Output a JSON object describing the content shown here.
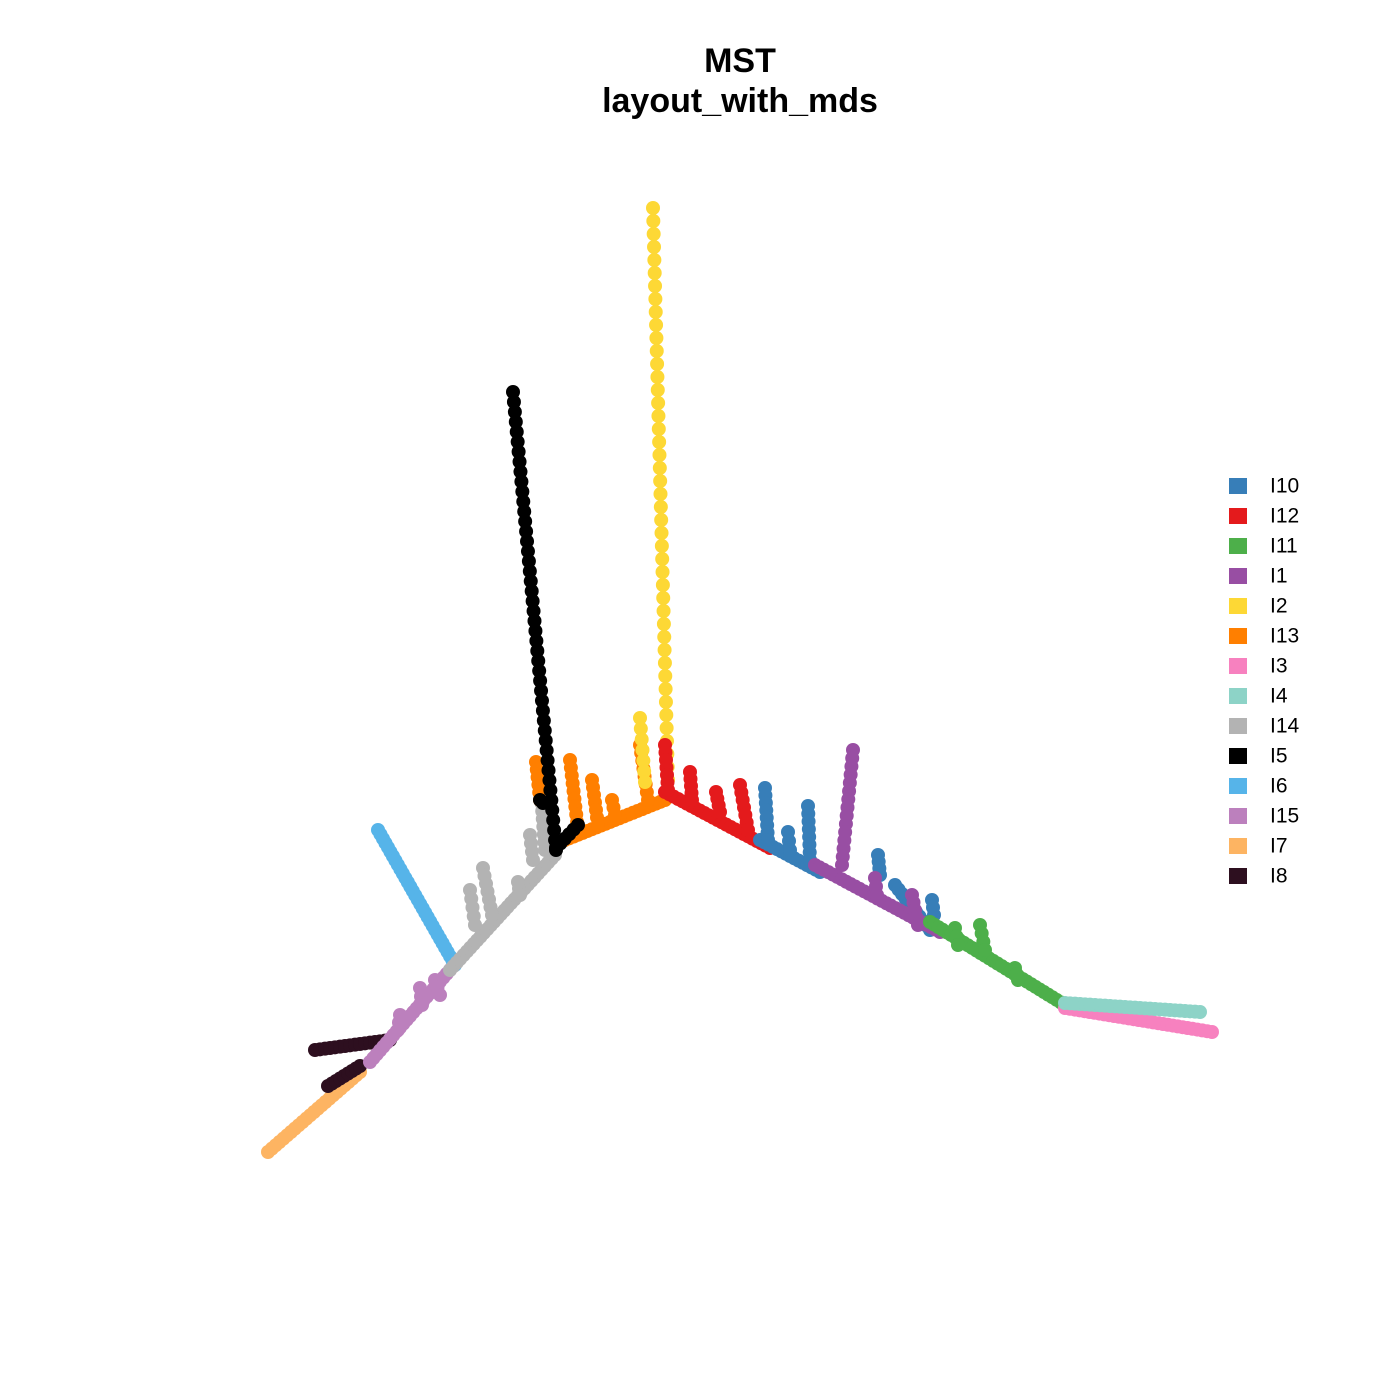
{
  "chart_data": {
    "type": "network",
    "title": "MST",
    "subtitle": "layout_with_mds",
    "legend": [
      {
        "name": "I10",
        "color": "#377eb8"
      },
      {
        "name": "I12",
        "color": "#e41a1c"
      },
      {
        "name": "I11",
        "color": "#4daf4a"
      },
      {
        "name": "I1",
        "color": "#984ea3"
      },
      {
        "name": "I2",
        "color": "#fdd835"
      },
      {
        "name": "I13",
        "color": "#ff7f00"
      },
      {
        "name": "I3",
        "color": "#f781bf"
      },
      {
        "name": "I4",
        "color": "#8dd3c7"
      },
      {
        "name": "I14",
        "color": "#b3b3b3"
      },
      {
        "name": "I5",
        "color": "#000000"
      },
      {
        "name": "I6",
        "color": "#56b4e9"
      },
      {
        "name": "I15",
        "color": "#bc80bd"
      },
      {
        "name": "I7",
        "color": "#fdb462"
      },
      {
        "name": "I8",
        "color": "#2d0f1f"
      }
    ]
  }
}
